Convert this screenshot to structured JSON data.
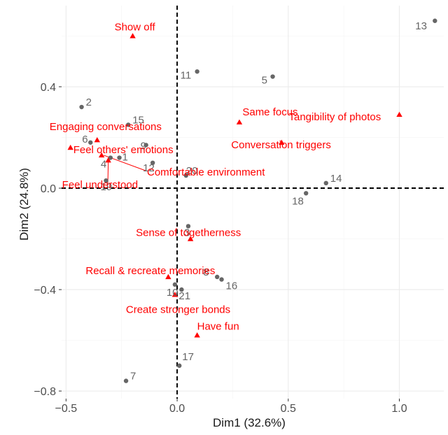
{
  "chart_data": {
    "type": "scatter",
    "title": "",
    "xlabel": "Dim1 (32.6%)",
    "ylabel": "Dim2 (24.8%)",
    "xlim": [
      -0.52,
      1.2
    ],
    "ylim": [
      -0.83,
      0.72
    ],
    "x_ticks": [
      -0.5,
      0.0,
      0.5,
      1.0
    ],
    "x_tick_labels": [
      "−0.5",
      "0.0",
      "0.5",
      "1.0"
    ],
    "y_ticks": [
      -0.8,
      -0.4,
      0.0,
      0.4
    ],
    "y_tick_labels": [
      "−0.8",
      "−0.4",
      "0.0",
      "0.4"
    ],
    "grid": true,
    "reference_lines": {
      "x": 0,
      "y": 0,
      "style": "dashed"
    },
    "colors": {
      "individuals": "#666666",
      "variables": "#ff0000"
    },
    "series": [
      {
        "kind": "individuals",
        "marker": "circle",
        "points": [
          {
            "label": "1",
            "x": -0.26,
            "y": 0.12
          },
          {
            "label": "2",
            "x": -0.43,
            "y": 0.32
          },
          {
            "label": "3",
            "x": 0.05,
            "y": -0.15
          },
          {
            "label": "4",
            "x": -0.3,
            "y": 0.12
          },
          {
            "label": "5",
            "x": 0.43,
            "y": 0.44
          },
          {
            "label": "6",
            "x": -0.39,
            "y": 0.18
          },
          {
            "label": "7",
            "x": -0.23,
            "y": -0.76
          },
          {
            "label": "8",
            "x": 0.18,
            "y": -0.35
          },
          {
            "label": "9",
            "x": -0.14,
            "y": 0.17
          },
          {
            "label": "10",
            "x": -0.01,
            "y": -0.38
          },
          {
            "label": "11",
            "x": 0.09,
            "y": 0.46
          },
          {
            "label": "12",
            "x": -0.11,
            "y": 0.1
          },
          {
            "label": "13",
            "x": 1.16,
            "y": 0.66
          },
          {
            "label": "14",
            "x": 0.67,
            "y": 0.02
          },
          {
            "label": "15",
            "x": -0.22,
            "y": 0.25
          },
          {
            "label": "16",
            "x": 0.2,
            "y": -0.36
          },
          {
            "label": "17",
            "x": 0.01,
            "y": -0.7
          },
          {
            "label": "18",
            "x": 0.58,
            "y": -0.02
          },
          {
            "label": "19",
            "x": -0.32,
            "y": 0.03
          },
          {
            "label": "20",
            "x": 0.04,
            "y": 0.05
          },
          {
            "label": "21",
            "x": 0.02,
            "y": -0.4
          }
        ]
      },
      {
        "kind": "variables",
        "marker": "triangle",
        "points": [
          {
            "label": "Show off",
            "x": -0.2,
            "y": 0.6
          },
          {
            "label": "Same focus",
            "x": 0.28,
            "y": 0.26
          },
          {
            "label": "Tangibility of photos",
            "x": 1.0,
            "y": 0.29
          },
          {
            "label": "Conversation triggers",
            "x": 0.47,
            "y": 0.18
          },
          {
            "label": "Engaging conversations",
            "x": -0.36,
            "y": 0.19
          },
          {
            "label": "Feel others' emotions",
            "x": -0.48,
            "y": 0.16
          },
          {
            "label": "Comfortable environment",
            "x": -0.34,
            "y": 0.13
          },
          {
            "label": "Feel understood",
            "x": -0.31,
            "y": 0.11
          },
          {
            "label": "Sense of togetherness",
            "x": 0.06,
            "y": -0.2
          },
          {
            "label": "Recall & recreate memories",
            "x": -0.04,
            "y": -0.35
          },
          {
            "label": "Create stronger bonds",
            "x": -0.01,
            "y": -0.42
          },
          {
            "label": "Have fun",
            "x": 0.09,
            "y": -0.58
          }
        ]
      }
    ]
  }
}
